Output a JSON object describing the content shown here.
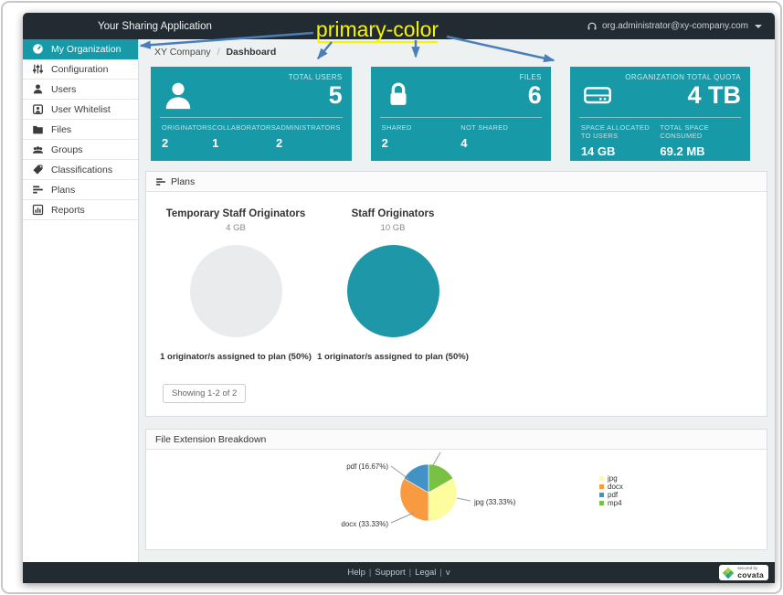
{
  "colors": {
    "primary": "#1899A8",
    "top_bar": "#232B32",
    "content_background": "#EEF1F2",
    "annotation_yellow": "#F6F500",
    "annotation_arrow_blue": "#4A7EBB"
  },
  "annotation": {
    "label": "primary-color"
  },
  "header": {
    "app_title": "Your Sharing Application",
    "account_email": "org.administrator@xy-company.com"
  },
  "sidebar": {
    "items": [
      {
        "label": "My Organization",
        "active": true
      },
      {
        "label": "Configuration"
      },
      {
        "label": "Users"
      },
      {
        "label": "User Whitelist"
      },
      {
        "label": "Files"
      },
      {
        "label": "Groups"
      },
      {
        "label": "Classifications"
      },
      {
        "label": "Plans"
      },
      {
        "label": "Reports"
      }
    ]
  },
  "breadcrumb": {
    "parent": "XY Company",
    "separator": "/",
    "current": "Dashboard"
  },
  "stats": [
    {
      "title": "TOTAL USERS",
      "value": "5",
      "metrics": [
        {
          "label": "ORIGINATORS",
          "value": "2"
        },
        {
          "label": "COLLABORATORS",
          "value": "1"
        },
        {
          "label": "ADMINISTRATORS",
          "value": "2"
        }
      ]
    },
    {
      "title": "FILES",
      "value": "6",
      "metrics": [
        {
          "label": "SHARED",
          "value": "2"
        },
        {
          "label": "NOT SHARED",
          "value": "4"
        }
      ]
    },
    {
      "title": "ORGANIZATION TOTAL QUOTA",
      "value": "4 TB",
      "metrics": [
        {
          "label": "SPACE ALLOCATED TO USERS",
          "value": "14 GB"
        },
        {
          "label": "TOTAL SPACE CONSUMED",
          "value": "69.2 MB"
        }
      ]
    }
  ],
  "plans": {
    "title": "Plans",
    "items": [
      {
        "name": "Temporary Staff Originators",
        "quota": "4 GB",
        "assigned": "1 originator/s assigned to plan (50%)"
      },
      {
        "name": "Staff Originators",
        "quota": "10 GB",
        "assigned": "1 originator/s assigned to plan (50%)"
      }
    ],
    "paging": "Showing 1-2 of 2"
  },
  "file_breakdown": {
    "title": "File Extension Breakdown"
  },
  "chart_data": [
    {
      "name": "plan-circle-temporary-staff-originators",
      "type": "pie",
      "title": "Temporary Staff Originators",
      "subtitle": "4 GB",
      "slices": [
        {
          "label": "plan capacity",
          "pct": 100,
          "color": "#E9EBED"
        }
      ],
      "caption": "1 originator/s assigned to plan (50%)"
    },
    {
      "name": "plan-circle-staff-originators",
      "type": "pie",
      "title": "Staff Originators",
      "subtitle": "10 GB",
      "slices": [
        {
          "label": "plan capacity",
          "pct": 100,
          "color": "#1E98A8"
        }
      ],
      "caption": "1 originator/s assigned to plan (50%)"
    },
    {
      "name": "file-extension-pie",
      "type": "pie",
      "title": "File Extension Breakdown",
      "start_angle_deg": 0,
      "legend_position": "right",
      "slices": [
        {
          "name": "mp4",
          "pct": 16.67,
          "color": "#79C142",
          "label_text": "",
          "leader": [
            5,
            -30,
            13,
            -44
          ]
        },
        {
          "name": "jpg",
          "pct": 33.33,
          "color": "#FDFD9E",
          "label_text": "jpg (33.33%)",
          "leader": [
            31,
            6,
            46,
            9
          ],
          "label_pos": [
            50,
            13
          ],
          "anchor": "start"
        },
        {
          "name": "docx",
          "pct": 33.33,
          "color": "#F89A40",
          "label_text": "docx (33.33%)",
          "leader": [
            -16,
            22,
            -41,
            33
          ],
          "label_pos": [
            -44,
            37
          ],
          "anchor": "end"
        },
        {
          "name": "pdf",
          "pct": 16.67,
          "color": "#4292C6",
          "label_text": "pdf (16.67%)",
          "leader": [
            -22,
            -15,
            -41,
            -29
          ],
          "label_pos": [
            -44,
            -26
          ],
          "anchor": "end"
        }
      ],
      "legend": [
        {
          "label": "jpg",
          "color": "#FDFD9E"
        },
        {
          "label": "docx",
          "color": "#F89A40"
        },
        {
          "label": "pdf",
          "color": "#4292C6"
        },
        {
          "label": "mp4",
          "color": "#79C142"
        }
      ]
    }
  ],
  "footer": {
    "links": [
      {
        "label": "Help"
      },
      {
        "label": "Support"
      },
      {
        "label": "Legal"
      },
      {
        "label": "v"
      }
    ],
    "separator": "|",
    "badge": {
      "line1": "secured by",
      "line2": "covata"
    }
  }
}
